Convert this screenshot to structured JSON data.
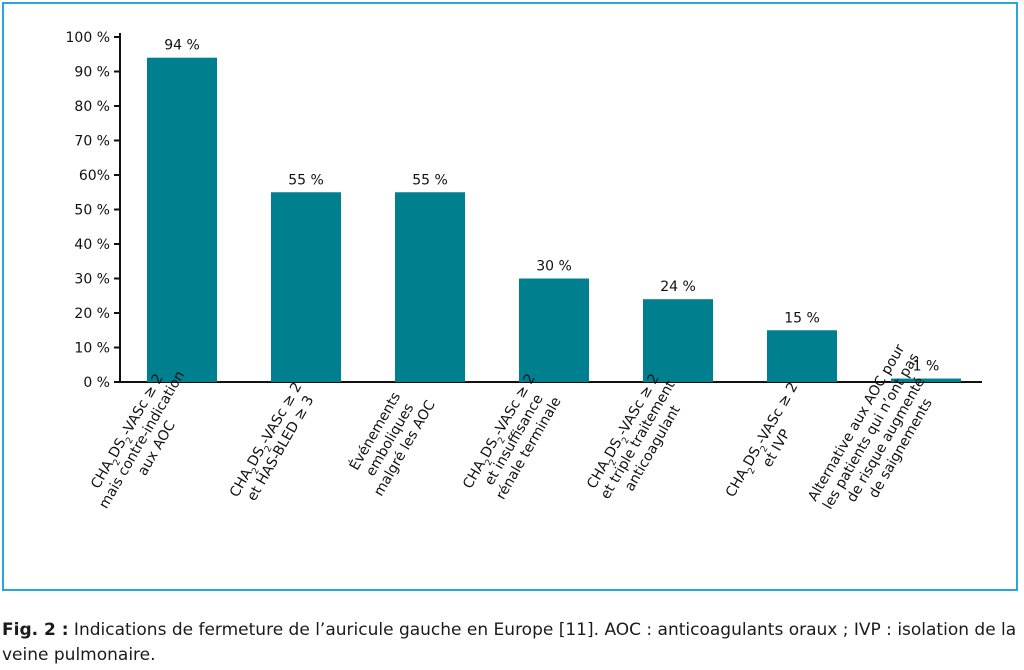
{
  "chart_data": {
    "type": "bar",
    "title": "",
    "xlabel": "",
    "ylabel": "",
    "ylim": [
      0,
      100
    ],
    "y_ticks": [
      "0 %",
      "10 %",
      "20 %",
      "30 %",
      "40 %",
      "50 %",
      "60%",
      "70 %",
      "80 %",
      "90 %",
      "100 %"
    ],
    "y_tick_values": [
      0,
      10,
      20,
      30,
      40,
      50,
      60,
      70,
      80,
      90,
      100
    ],
    "grid": false,
    "bar_color": "#00808f",
    "values": [
      94,
      55,
      55,
      30,
      24,
      15,
      1
    ],
    "data_labels": [
      "94 %",
      "55 %",
      "55 %",
      "30 %",
      "24 %",
      "15 %",
      "1 %"
    ],
    "categories": [
      "CHA2DS2-VASc ≥ 2 mais contre-indication aux AOC",
      "CHA2DS2-VASc ≥ 2 et HAS-BLED ≥ 3",
      "Événements emboliques malgré les AOC",
      "CHA2DS2-VASc ≥ 2 et insuffisance rénale terminale",
      "CHA2DS2-VASc ≥ 2 et triple traitement anticoagulant",
      "CHA2DS2-VASc ≥ 2 et IVP",
      "Alternative aux AOC pour les patients qui n’ont pas de risque augmenté de saignements"
    ],
    "category_lines": [
      [
        [
          [
            "CHA",
            false
          ],
          [
            "2",
            true
          ],
          [
            "DS",
            false
          ],
          [
            "2",
            true
          ],
          [
            "-VASc ≥ 2",
            false
          ]
        ],
        [
          [
            "mais contre-indication",
            false
          ]
        ],
        [
          [
            "aux AOC",
            false
          ]
        ]
      ],
      [
        [
          [
            "CHA",
            false
          ],
          [
            "2",
            true
          ],
          [
            "DS",
            false
          ],
          [
            "2",
            true
          ],
          [
            "-VASc ≥ 2",
            false
          ]
        ],
        [
          [
            "et HAS-BLED ≥ 3",
            false
          ]
        ]
      ],
      [
        [
          [
            "Événements",
            false
          ]
        ],
        [
          [
            "emboliques",
            false
          ]
        ],
        [
          [
            "malgré les AOC",
            false
          ]
        ]
      ],
      [
        [
          [
            "CHA",
            false
          ],
          [
            "2",
            true
          ],
          [
            "DS",
            false
          ],
          [
            "2",
            true
          ],
          [
            "-VASc ≥ 2",
            false
          ]
        ],
        [
          [
            "et insuffisance",
            false
          ]
        ],
        [
          [
            "rénale terminale",
            false
          ]
        ]
      ],
      [
        [
          [
            "CHA",
            false
          ],
          [
            "2",
            true
          ],
          [
            "DS",
            false
          ],
          [
            "2",
            true
          ],
          [
            "-VASc ≥ 2",
            false
          ]
        ],
        [
          [
            "et triple traitement",
            false
          ]
        ],
        [
          [
            "anticoagulant",
            false
          ]
        ]
      ],
      [
        [
          [
            "CHA",
            false
          ],
          [
            "2",
            true
          ],
          [
            "DS",
            false
          ],
          [
            "2",
            true
          ],
          [
            "-VASc ≥ 2",
            false
          ]
        ],
        [
          [
            "et IVP",
            false
          ]
        ]
      ],
      [
        [
          [
            "Alternative aux AOC pour",
            false
          ]
        ],
        [
          [
            "les patients qui n’ont pas",
            false
          ]
        ],
        [
          [
            "de risque augmenté",
            false
          ]
        ],
        [
          [
            "de saignements",
            false
          ]
        ]
      ]
    ]
  },
  "caption": {
    "label": "Fig. 2 :",
    "text": " Indications de fermeture de l’auricule gauche en Europe [11]. AOC : anticoagulants oraux ; IVP : isolation de la veine pulmonaire."
  },
  "colors": {
    "frame": "#2aa6d9",
    "bar": "#00808f",
    "axis": "#111111"
  }
}
